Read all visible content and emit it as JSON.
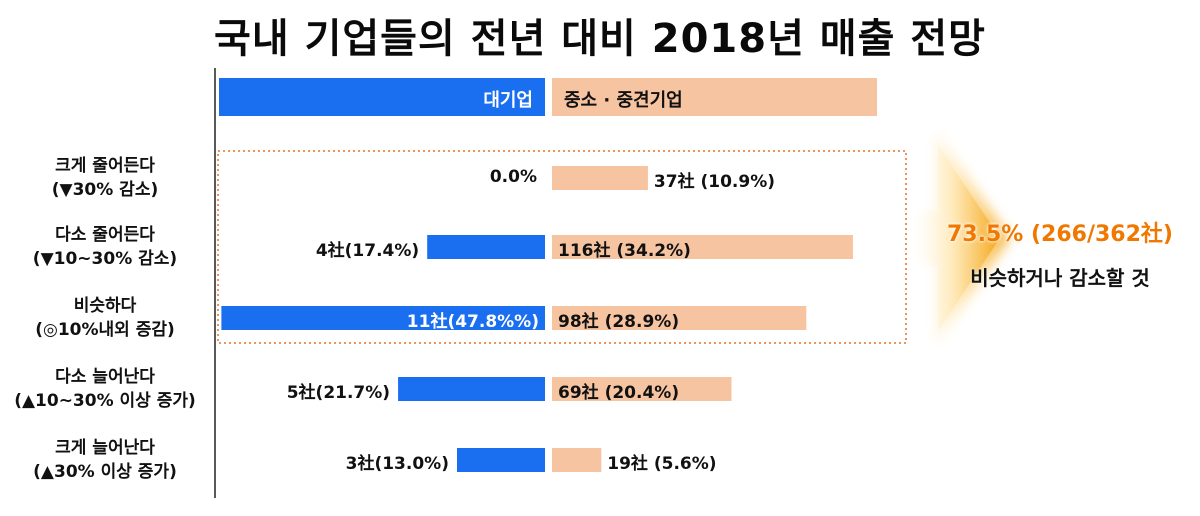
{
  "chart_data": {
    "type": "bar",
    "title": "국내 기업들의 전년 대비 2018년 매출 전망",
    "categories": [
      [
        "크게 줄어든다",
        "(▼30% 감소)"
      ],
      [
        "다소 줄어든다",
        "(▼10~30% 감소)"
      ],
      [
        "비슷하다",
        "(◎10%내외 증감)"
      ],
      [
        "다소 늘어난다",
        "(▲10~30% 이상 증가)"
      ],
      [
        "크게 늘어난다",
        "(▲30% 이상 증가)"
      ]
    ],
    "series": [
      {
        "name": "대기업",
        "color": "#1a6ef0",
        "values": [
          0.0,
          17.4,
          47.8,
          21.7,
          13.0
        ],
        "labels": [
          "0.0%",
          "4社(17.4%)",
          "11社(47.8%%)",
          "5社(21.7%)",
          "3社(13.0%)"
        ]
      },
      {
        "name": "중소 · 중견기업",
        "color": "#f7c4a2",
        "values": [
          10.9,
          34.2,
          28.9,
          20.4,
          5.6
        ],
        "labels": [
          "37社 (10.9%)",
          "116社 (34.2%)",
          "98社 (28.9%)",
          "69社 (20.4%)",
          "19社 (5.6%)"
        ]
      }
    ],
    "callout": {
      "value": "73.5% (266/362社)",
      "text": "비슷하거나 감소할 것"
    }
  }
}
